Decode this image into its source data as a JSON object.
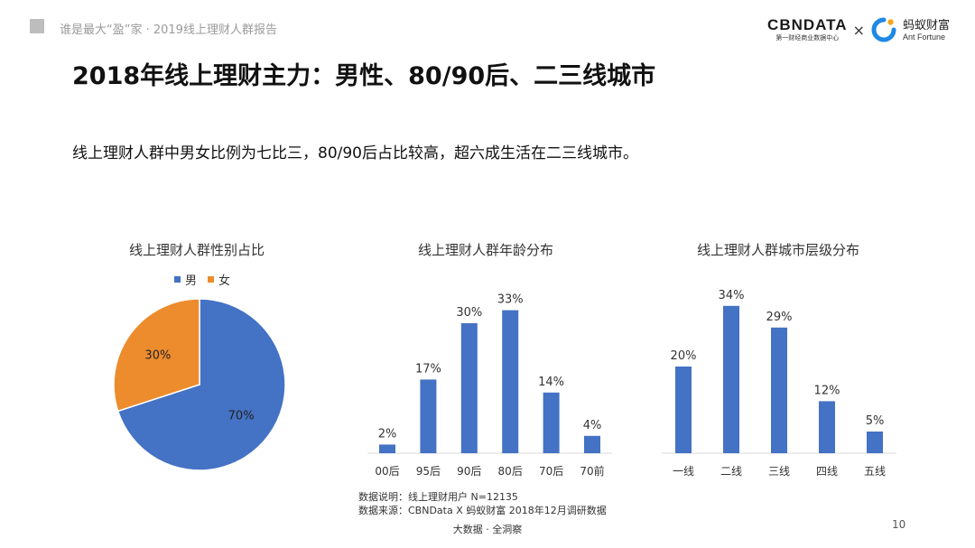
{
  "header": {
    "report_title": "谁是最大“盈”家 · 2019线上理财人群报告",
    "logo_cbn_name": "CBNDATA",
    "logo_cbn_sub": "第一财经商业数据中心",
    "logo_times": "×",
    "logo_ant_name": "蚂蚁财富",
    "logo_ant_sub": "Ant Fortune"
  },
  "page_title": "2018年线上理财主力：男性、80/90后、二三线城市",
  "summary": "线上理财人群中男女比例为七比三，80/90后占比较高，超六成生活在二三线城市。",
  "colors": {
    "blue": "#4472C4",
    "orange": "#ED8C2D"
  },
  "chart_data": [
    {
      "type": "pie",
      "title": "线上理财人群性别占比",
      "categories": [
        "男",
        "女"
      ],
      "values": [
        70,
        30
      ],
      "labels": [
        "70%",
        "30%"
      ],
      "legend": "top"
    },
    {
      "type": "bar",
      "title": "线上理财人群年龄分布",
      "categories": [
        "00后",
        "95后",
        "90后",
        "80后",
        "70后",
        "70前"
      ],
      "values": [
        2,
        17,
        30,
        33,
        14,
        4
      ],
      "labels": [
        "2%",
        "17%",
        "30%",
        "33%",
        "14%",
        "4%"
      ]
    },
    {
      "type": "bar",
      "title": "线上理财人群城市层级分布",
      "categories": [
        "一线",
        "二线",
        "三线",
        "四线",
        "五线"
      ],
      "values": [
        20,
        34,
        29,
        12,
        5
      ],
      "labels": [
        "20%",
        "34%",
        "29%",
        "12%",
        "5%"
      ]
    }
  ],
  "notes": {
    "line1": "数据说明：线上理财用户 N=12135",
    "line2": "数据来源：CBNData X 蚂蚁财富 2018年12月调研数据"
  },
  "footer": {
    "tagline": "大数据 · 全洞察",
    "page_number": "10"
  }
}
